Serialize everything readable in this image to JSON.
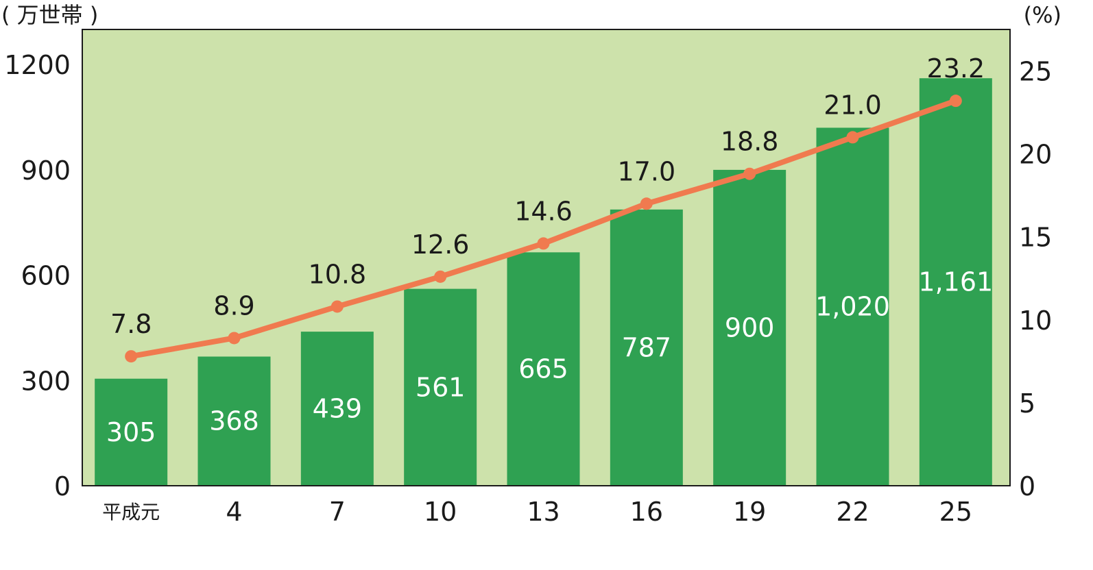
{
  "chart_data": {
    "type": "bar",
    "title": "",
    "categories": [
      "平成元",
      "4",
      "7",
      "10",
      "13",
      "16",
      "19",
      "22",
      "25"
    ],
    "series": [
      {
        "type": "bar",
        "axis": "left",
        "values": [
          305,
          368,
          439,
          561,
          665,
          787,
          900,
          1020,
          1161
        ],
        "value_labels": [
          "305",
          "368",
          "439",
          "561",
          "665",
          "787",
          "900",
          "1,020",
          "1,161"
        ]
      },
      {
        "type": "line",
        "axis": "right",
        "values": [
          7.8,
          8.9,
          10.8,
          12.6,
          14.6,
          17.0,
          18.8,
          21.0,
          23.2
        ],
        "value_labels": [
          "7.8",
          "8.9",
          "10.8",
          "12.6",
          "14.6",
          "17.0",
          "18.8",
          "21.0",
          "23.2"
        ]
      }
    ],
    "y_left": {
      "unit_label": "( 万世帯 )",
      "range": [
        0,
        1300
      ],
      "ticks": [
        "0",
        "300",
        "600",
        "900",
        "1200"
      ],
      "tick_values": [
        0,
        300,
        600,
        900,
        1200
      ]
    },
    "y_right": {
      "unit_label": "(%)",
      "range": [
        0,
        27.5
      ],
      "ticks": [
        "0",
        "5",
        "10",
        "15",
        "20",
        "25"
      ],
      "tick_values": [
        0,
        5,
        10,
        15,
        20,
        25
      ]
    },
    "grid": false,
    "legend": "none",
    "colors": {
      "plot_background": "#cde2ab",
      "bar": "#2fa152",
      "line": "#f07a4f",
      "axis": "#1a1a1a"
    }
  }
}
